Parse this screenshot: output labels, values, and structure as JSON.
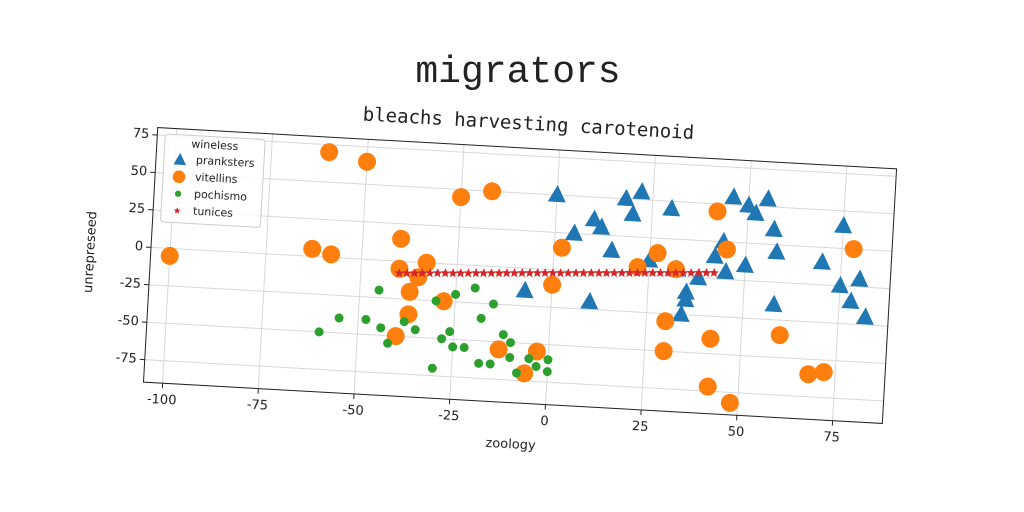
{
  "chart_data": {
    "type": "scatter",
    "title": "migrators",
    "subtitle": "bleachs harvesting carotenoid",
    "x_label": "zoology",
    "y_label": "unrepreseed",
    "legend_title": "wineless",
    "legend_position": "upper left",
    "grid": true,
    "xlim": [
      -105,
      88
    ],
    "ylim": [
      -90,
      80
    ],
    "xticks": [
      -100,
      -75,
      -50,
      -25,
      0,
      25,
      50,
      75
    ],
    "yticks": [
      -75,
      -50,
      -25,
      0,
      25,
      50,
      75
    ],
    "series": [
      {
        "name": "pranksters",
        "color": "#1f77b4",
        "marker": "triangle",
        "x": [
          0,
          5,
          10,
          12,
          15,
          18,
          20,
          22,
          25,
          30,
          32,
          35,
          35,
          34,
          38,
          10,
          -7,
          42,
          44,
          45,
          46,
          50,
          52,
          55,
          57,
          58,
          50,
          58,
          70,
          75,
          75,
          78,
          80,
          82
        ],
        "values": [
          50,
          25,
          35,
          30,
          15,
          50,
          40,
          55,
          10,
          45,
          5,
          -10,
          -15,
          -25,
          0,
          -20,
          -15,
          15,
          25,
          5,
          55,
          50,
          45,
          55,
          35,
          20,
          10,
          -15,
          15,
          40,
          0,
          -10,
          5,
          -20
        ]
      },
      {
        "name": "vitellins",
        "color": "#ff7f0e",
        "marker": "circle",
        "x": [
          -100,
          -60,
          -50,
          -25,
          -17,
          -63,
          -58,
          -40,
          -40,
          -33,
          -35,
          -37,
          -28,
          -37,
          -40,
          -13,
          -6,
          -3,
          0,
          2,
          22,
          27,
          32,
          30,
          30,
          42,
          42,
          45,
          60,
          68,
          72,
          78,
          42,
          48
        ],
        "values": [
          -5,
          70,
          65,
          45,
          50,
          5,
          2,
          15,
          -5,
          0,
          -10,
          -20,
          -25,
          -35,
          -50,
          -55,
          -70,
          -55,
          -10,
          15,
          5,
          15,
          5,
          -30,
          -50,
          -40,
          45,
          20,
          -35,
          -60,
          -58,
          25,
          -72,
          -82
        ]
      },
      {
        "name": "pochismo",
        "color": "#2ca02c",
        "marker": "dot",
        "x": [
          -45,
          -55,
          -48,
          -44,
          -42,
          -38,
          -35,
          -30,
          -28,
          -30,
          -26,
          -25,
          -22,
          -20,
          -18,
          -18,
          -15,
          -12,
          -10,
          -10,
          -8,
          -5,
          -3,
          0,
          0,
          -15,
          -25,
          -60
        ],
        "values": [
          -20,
          -40,
          -40,
          -45,
          -55,
          -40,
          -45,
          -25,
          -50,
          -70,
          -45,
          -55,
          -55,
          -15,
          -35,
          -65,
          -65,
          -45,
          -50,
          -60,
          -70,
          -60,
          -65,
          -60,
          -68,
          -25,
          -20,
          -50
        ]
      },
      {
        "name": "tunices",
        "color": "#d62728",
        "marker": "star",
        "x": [
          -40,
          -38,
          -36,
          -34,
          -32,
          -30,
          -28,
          -26,
          -24,
          -22,
          -20,
          -18,
          -16,
          -14,
          -12,
          -10,
          -8,
          -6,
          -4,
          -2,
          0,
          2,
          4,
          6,
          8,
          10,
          12,
          14,
          16,
          18,
          20,
          22,
          24,
          26,
          28,
          30,
          32,
          34,
          36,
          38,
          40,
          42
        ],
        "values": [
          -8.0,
          -7.7,
          -7.4,
          -7.1,
          -6.8,
          -6.5,
          -6.2,
          -6.0,
          -5.7,
          -5.4,
          -5.1,
          -4.8,
          -4.5,
          -4.2,
          -3.9,
          -3.6,
          -3.3,
          -3.0,
          -2.7,
          -2.4,
          -2.1,
          -1.9,
          -1.6,
          -1.3,
          -1.0,
          -0.7,
          -0.4,
          -0.1,
          0.2,
          0.5,
          0.8,
          1.1,
          1.4,
          1.7,
          2.0,
          2.2,
          2.5,
          2.8,
          3.1,
          3.4,
          3.7,
          4.0
        ]
      }
    ]
  }
}
